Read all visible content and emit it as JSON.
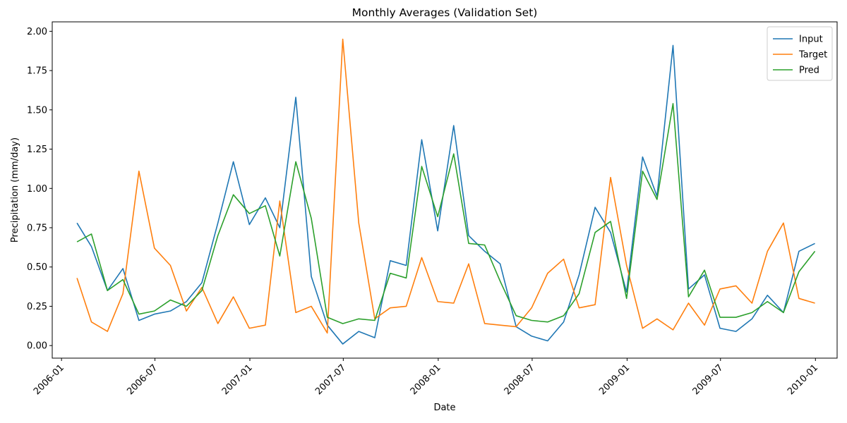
{
  "chart_data": {
    "type": "line",
    "title": "Monthly Averages (Validation Set)",
    "xlabel": "Date",
    "ylabel": "Precipitation (mm/day)",
    "x_ticks": [
      "2006-01",
      "2006-07",
      "2007-01",
      "2007-07",
      "2008-01",
      "2008-07",
      "2009-01",
      "2009-07",
      "2010-01"
    ],
    "y_ticks": [
      "0.00",
      "0.25",
      "0.50",
      "0.75",
      "1.00",
      "1.25",
      "1.50",
      "1.75",
      "2.00"
    ],
    "ylim": [
      -0.08,
      2.06
    ],
    "xlim": [
      "2005-12-14",
      "2010-02-12"
    ],
    "legend_position": "top-right",
    "grid": false,
    "x": [
      "2006-01-31",
      "2006-02-28",
      "2006-03-31",
      "2006-04-30",
      "2006-05-31",
      "2006-06-30",
      "2006-07-31",
      "2006-08-31",
      "2006-09-30",
      "2006-10-31",
      "2006-11-30",
      "2006-12-31",
      "2007-01-31",
      "2007-02-28",
      "2007-03-31",
      "2007-04-30",
      "2007-05-31",
      "2007-06-30",
      "2007-07-31",
      "2007-08-31",
      "2007-09-30",
      "2007-10-31",
      "2007-11-30",
      "2007-12-31",
      "2008-01-31",
      "2008-02-29",
      "2008-03-31",
      "2008-04-30",
      "2008-05-31",
      "2008-06-30",
      "2008-07-31",
      "2008-08-31",
      "2008-09-30",
      "2008-10-31",
      "2008-11-30",
      "2008-12-31",
      "2009-01-31",
      "2009-02-28",
      "2009-03-31",
      "2009-04-30",
      "2009-05-31",
      "2009-06-30",
      "2009-07-31",
      "2009-08-31",
      "2009-09-30",
      "2009-10-31",
      "2009-11-30",
      "2009-12-31"
    ],
    "series": [
      {
        "name": "Input",
        "color": "#1f77b4",
        "values": [
          0.78,
          0.63,
          0.35,
          0.49,
          0.16,
          0.2,
          0.22,
          0.28,
          0.4,
          0.78,
          1.17,
          0.77,
          0.94,
          0.75,
          1.58,
          0.44,
          0.13,
          0.01,
          0.09,
          0.05,
          0.54,
          0.51,
          1.31,
          0.73,
          1.4,
          0.7,
          0.6,
          0.52,
          0.12,
          0.06,
          0.03,
          0.15,
          0.45,
          0.88,
          0.72,
          0.34,
          1.2,
          0.95,
          1.91,
          0.36,
          0.45,
          0.11,
          0.09,
          0.17,
          0.32,
          0.21,
          0.6,
          0.65
        ]
      },
      {
        "name": "Target",
        "color": "#ff7f0e",
        "values": [
          0.43,
          0.15,
          0.09,
          0.33,
          1.11,
          0.62,
          0.51,
          0.22,
          0.37,
          0.14,
          0.31,
          0.11,
          0.13,
          0.92,
          0.21,
          0.25,
          0.08,
          1.95,
          0.78,
          0.17,
          0.24,
          0.25,
          0.56,
          0.28,
          0.27,
          0.52,
          0.14,
          0.13,
          0.12,
          0.24,
          0.46,
          0.55,
          0.24,
          0.26,
          1.07,
          0.51,
          0.11,
          0.17,
          0.1,
          0.27,
          0.13,
          0.36,
          0.38,
          0.27,
          0.6,
          0.78,
          0.3,
          0.27
        ]
      },
      {
        "name": "Pred",
        "color": "#2ca02c",
        "values": [
          0.66,
          0.71,
          0.35,
          0.42,
          0.2,
          0.22,
          0.29,
          0.25,
          0.35,
          0.7,
          0.96,
          0.84,
          0.89,
          0.57,
          1.17,
          0.81,
          0.18,
          0.14,
          0.17,
          0.16,
          0.46,
          0.43,
          1.14,
          0.82,
          1.22,
          0.65,
          0.64,
          0.41,
          0.19,
          0.16,
          0.15,
          0.19,
          0.33,
          0.72,
          0.79,
          0.3,
          1.11,
          0.93,
          1.54,
          0.31,
          0.48,
          0.18,
          0.18,
          0.21,
          0.28,
          0.21,
          0.47,
          0.6
        ]
      }
    ]
  }
}
